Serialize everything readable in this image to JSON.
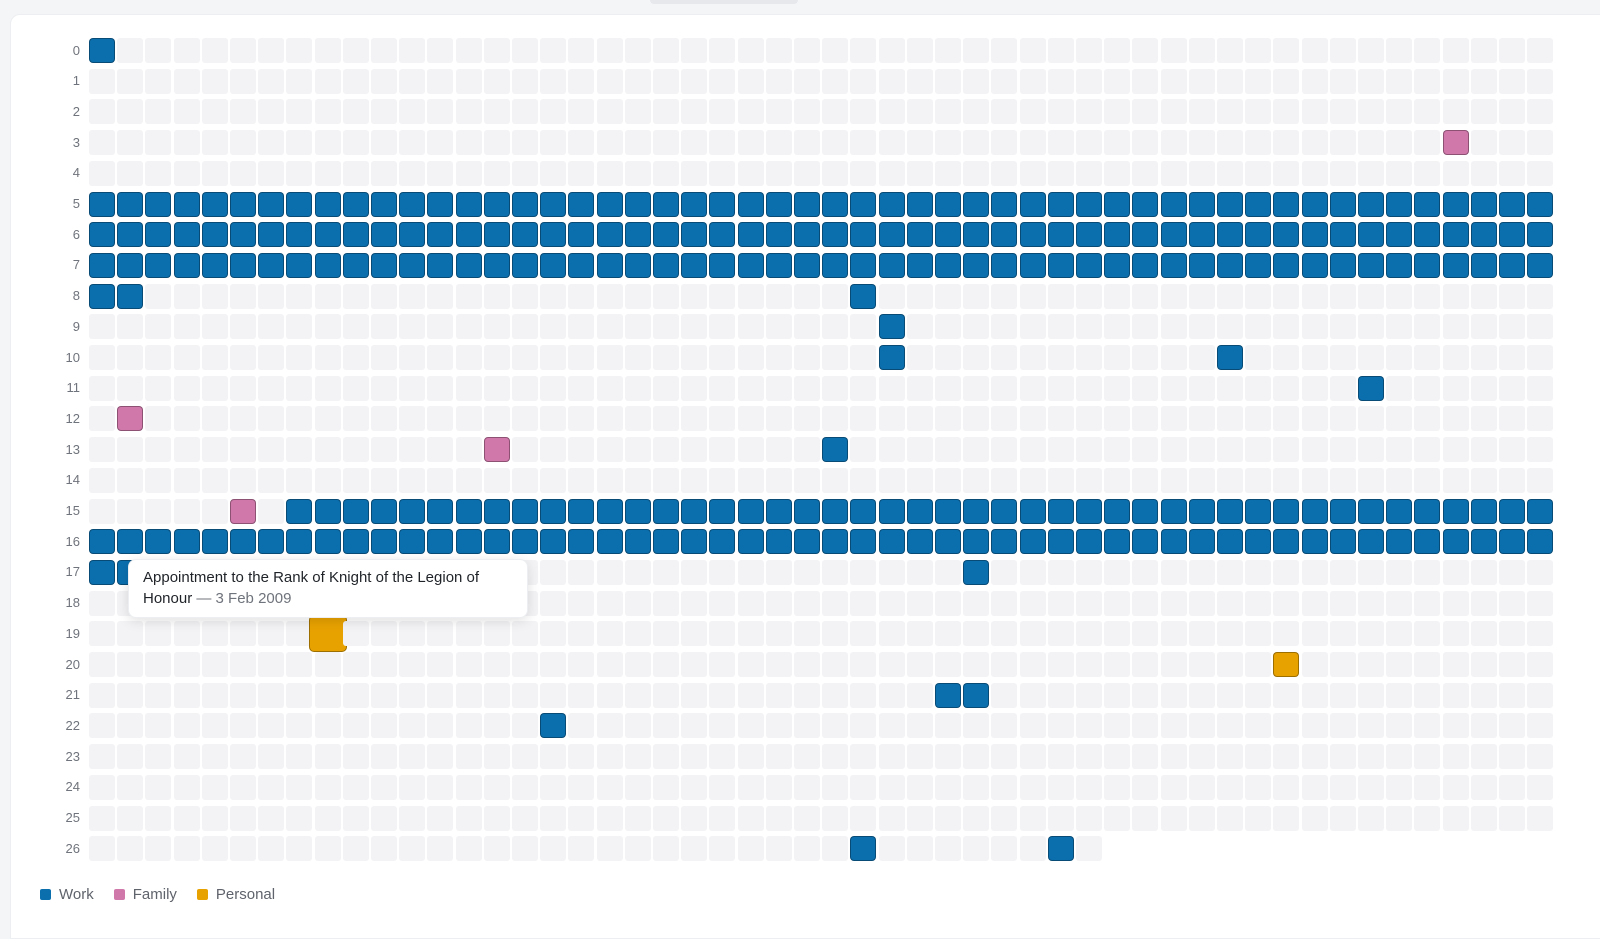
{
  "colors": {
    "Work": "#0b6fae",
    "Family": "#d078aa",
    "Personal": "#e8a200",
    "empty": "#f3f3f5"
  },
  "grid": {
    "rows": 27,
    "columns": 52,
    "last_row_columns": 36,
    "row_labels": [
      "0",
      "1",
      "2",
      "3",
      "4",
      "5",
      "6",
      "7",
      "8",
      "9",
      "10",
      "11",
      "12",
      "13",
      "14",
      "15",
      "16",
      "17",
      "18",
      "19",
      "20",
      "21",
      "22",
      "23",
      "24",
      "25",
      "26"
    ]
  },
  "events": [
    {
      "row": 0,
      "col": 0,
      "category": "Work"
    },
    {
      "row": 3,
      "col": 48,
      "category": "Family"
    },
    {
      "row": 5,
      "from": 0,
      "to": 51,
      "category": "Work"
    },
    {
      "row": 6,
      "from": 0,
      "to": 51,
      "category": "Work"
    },
    {
      "row": 7,
      "from": 0,
      "to": 51,
      "category": "Work"
    },
    {
      "row": 8,
      "col": 0,
      "category": "Work"
    },
    {
      "row": 8,
      "col": 1,
      "category": "Work"
    },
    {
      "row": 8,
      "col": 27,
      "category": "Work"
    },
    {
      "row": 9,
      "col": 28,
      "category": "Work"
    },
    {
      "row": 10,
      "col": 28,
      "category": "Work"
    },
    {
      "row": 10,
      "col": 40,
      "category": "Work"
    },
    {
      "row": 11,
      "col": 45,
      "category": "Work"
    },
    {
      "row": 12,
      "col": 1,
      "category": "Family"
    },
    {
      "row": 13,
      "col": 14,
      "category": "Family"
    },
    {
      "row": 13,
      "col": 26,
      "category": "Work"
    },
    {
      "row": 15,
      "col": 5,
      "category": "Family"
    },
    {
      "row": 15,
      "from": 7,
      "to": 51,
      "category": "Work"
    },
    {
      "row": 16,
      "from": 0,
      "to": 51,
      "category": "Work"
    },
    {
      "row": 17,
      "col": 0,
      "category": "Work"
    },
    {
      "row": 17,
      "col": 1,
      "category": "Work"
    },
    {
      "row": 17,
      "col": 31,
      "category": "Work"
    },
    {
      "row": 19,
      "col": 8,
      "category": "Personal",
      "highlighted": true
    },
    {
      "row": 20,
      "col": 42,
      "category": "Personal"
    },
    {
      "row": 21,
      "col": 30,
      "category": "Work"
    },
    {
      "row": 21,
      "col": 31,
      "category": "Work"
    },
    {
      "row": 22,
      "col": 16,
      "category": "Work"
    },
    {
      "row": 26,
      "col": 27,
      "category": "Work"
    },
    {
      "row": 26,
      "col": 34,
      "category": "Work"
    }
  ],
  "tooltip": {
    "title": "Appointment to the Rank of Knight of the Legion of Honour",
    "separator": " — ",
    "date": "3 Feb 2009"
  },
  "legend": [
    {
      "label": "Work",
      "category": "Work"
    },
    {
      "label": "Family",
      "category": "Family"
    },
    {
      "label": "Personal",
      "category": "Personal"
    }
  ]
}
